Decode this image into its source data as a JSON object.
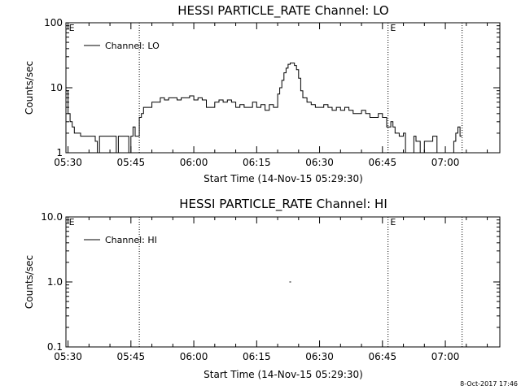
{
  "footer_timestamp": "8-Oct-2017 17:46",
  "chart_data": [
    {
      "type": "line",
      "title": "HESSI PARTICLE_RATE Channel: LO",
      "xlabel": "Start Time (14-Nov-15 05:29:30)",
      "ylabel": "Counts/sec",
      "yscale": "log",
      "ylim": [
        1,
        100
      ],
      "xlim": [
        "05:29:30",
        "07:13:00"
      ],
      "xticks": [
        "05:30",
        "05:45",
        "06:00",
        "06:15",
        "06:30",
        "06:45",
        "07:00"
      ],
      "yticks": [
        "1",
        "10",
        "100"
      ],
      "grid": false,
      "legend": {
        "position": "top-left",
        "entries": [
          "Channel: LO"
        ]
      },
      "vlines": [
        "05:47:00",
        "06:46:20",
        "07:04:00"
      ],
      "annotations": [
        {
          "text": "E",
          "x": "05:30:00"
        },
        {
          "text": "E",
          "x": "06:46:40"
        }
      ],
      "series": [
        {
          "name": "Channel: LO",
          "x": [
            "05:29:30",
            "05:30:00",
            "05:30:30",
            "05:31:00",
            "05:31:30",
            "05:32:00",
            "05:33:00",
            "05:34:00",
            "05:35:00",
            "05:36:00",
            "05:36:30",
            "05:37:00",
            "05:37:30",
            "05:38:00",
            "05:39:00",
            "05:40:00",
            "05:41:00",
            "05:41:30",
            "05:42:00",
            "05:42:30",
            "05:43:00",
            "05:44:00",
            "05:44:30",
            "05:45:00",
            "05:45:30",
            "05:46:00",
            "05:46:30",
            "05:47:00",
            "05:47:30",
            "05:48:00",
            "05:49:00",
            "05:50:00",
            "05:51:00",
            "05:52:00",
            "05:53:00",
            "05:54:00",
            "05:55:00",
            "05:56:00",
            "05:57:00",
            "05:58:00",
            "05:59:00",
            "06:00:00",
            "06:01:00",
            "06:02:00",
            "06:03:00",
            "06:04:00",
            "06:05:00",
            "06:06:00",
            "06:07:00",
            "06:08:00",
            "06:09:00",
            "06:10:00",
            "06:11:00",
            "06:12:00",
            "06:13:00",
            "06:14:00",
            "06:15:00",
            "06:16:00",
            "06:17:00",
            "06:18:00",
            "06:19:00",
            "06:20:00",
            "06:20:30",
            "06:21:00",
            "06:21:30",
            "06:22:00",
            "06:22:30",
            "06:23:00",
            "06:23:30",
            "06:24:00",
            "06:24:30",
            "06:25:00",
            "06:25:30",
            "06:26:00",
            "06:27:00",
            "06:28:00",
            "06:29:00",
            "06:30:00",
            "06:31:00",
            "06:32:00",
            "06:33:00",
            "06:34:00",
            "06:35:00",
            "06:36:00",
            "06:37:00",
            "06:38:00",
            "06:39:00",
            "06:40:00",
            "06:41:00",
            "06:42:00",
            "06:43:00",
            "06:44:00",
            "06:45:00",
            "06:46:00",
            "06:47:00",
            "06:47:30",
            "06:48:00",
            "06:49:00",
            "06:50:00",
            "06:50:30",
            "06:51:00",
            "06:52:00",
            "06:52:30",
            "06:53:00",
            "06:54:00",
            "06:55:00",
            "06:56:00",
            "06:57:00",
            "06:58:00",
            "06:59:00",
            "07:00:00",
            "07:01:00",
            "07:02:00",
            "07:02:30",
            "07:03:00",
            "07:03:30"
          ],
          "y": [
            9,
            4,
            3,
            2.5,
            2,
            2,
            1.8,
            1.8,
            1.8,
            1.8,
            1.5,
            1,
            1.8,
            1.8,
            1.8,
            1.8,
            1.8,
            1,
            1.8,
            1.8,
            1.8,
            1.8,
            1,
            1.8,
            2.5,
            1.8,
            1.8,
            3.5,
            4,
            5,
            5,
            6,
            6,
            7,
            6.5,
            7,
            7,
            6.5,
            7,
            7,
            7.5,
            6.5,
            7,
            6.5,
            5,
            5,
            6,
            6.5,
            6,
            6.5,
            6,
            5,
            5.5,
            5,
            5,
            6,
            5,
            5.5,
            4.5,
            5.5,
            5,
            8,
            10,
            13,
            17,
            20,
            23,
            24,
            24,
            22,
            19,
            14,
            9,
            7,
            6,
            5.5,
            5,
            5,
            5.5,
            5,
            4.5,
            5,
            4.5,
            5,
            4.5,
            4,
            4,
            4.5,
            4,
            3.5,
            3.5,
            4,
            3.5,
            2.5,
            3,
            2.5,
            2,
            1.8,
            2,
            1,
            1,
            1,
            1.8,
            1.5,
            1,
            1.5,
            1.5,
            1.8,
            1,
            1,
            1,
            1,
            1.5,
            2,
            2.5,
            1.8
          ]
        }
      ]
    },
    {
      "type": "line",
      "title": "HESSI PARTICLE_RATE Channel: HI",
      "xlabel": "Start Time (14-Nov-15 05:29:30)",
      "ylabel": "Counts/sec",
      "yscale": "log",
      "ylim": [
        0.1,
        10
      ],
      "xlim": [
        "05:29:30",
        "07:13:00"
      ],
      "xticks": [
        "05:30",
        "05:45",
        "06:00",
        "06:15",
        "06:30",
        "06:45",
        "07:00"
      ],
      "yticks": [
        "0.1",
        "1.0",
        "10.0"
      ],
      "grid": false,
      "legend": {
        "position": "top-left",
        "entries": [
          "Channel: HI"
        ]
      },
      "vlines": [
        "05:47:00",
        "06:46:20",
        "07:04:00"
      ],
      "annotations": [
        {
          "text": "E",
          "x": "05:30:00"
        },
        {
          "text": "E",
          "x": "06:46:40"
        }
      ],
      "series": [
        {
          "name": "Channel: HI",
          "x": [
            "06:23:00"
          ],
          "y": [
            1.0
          ]
        }
      ]
    }
  ]
}
